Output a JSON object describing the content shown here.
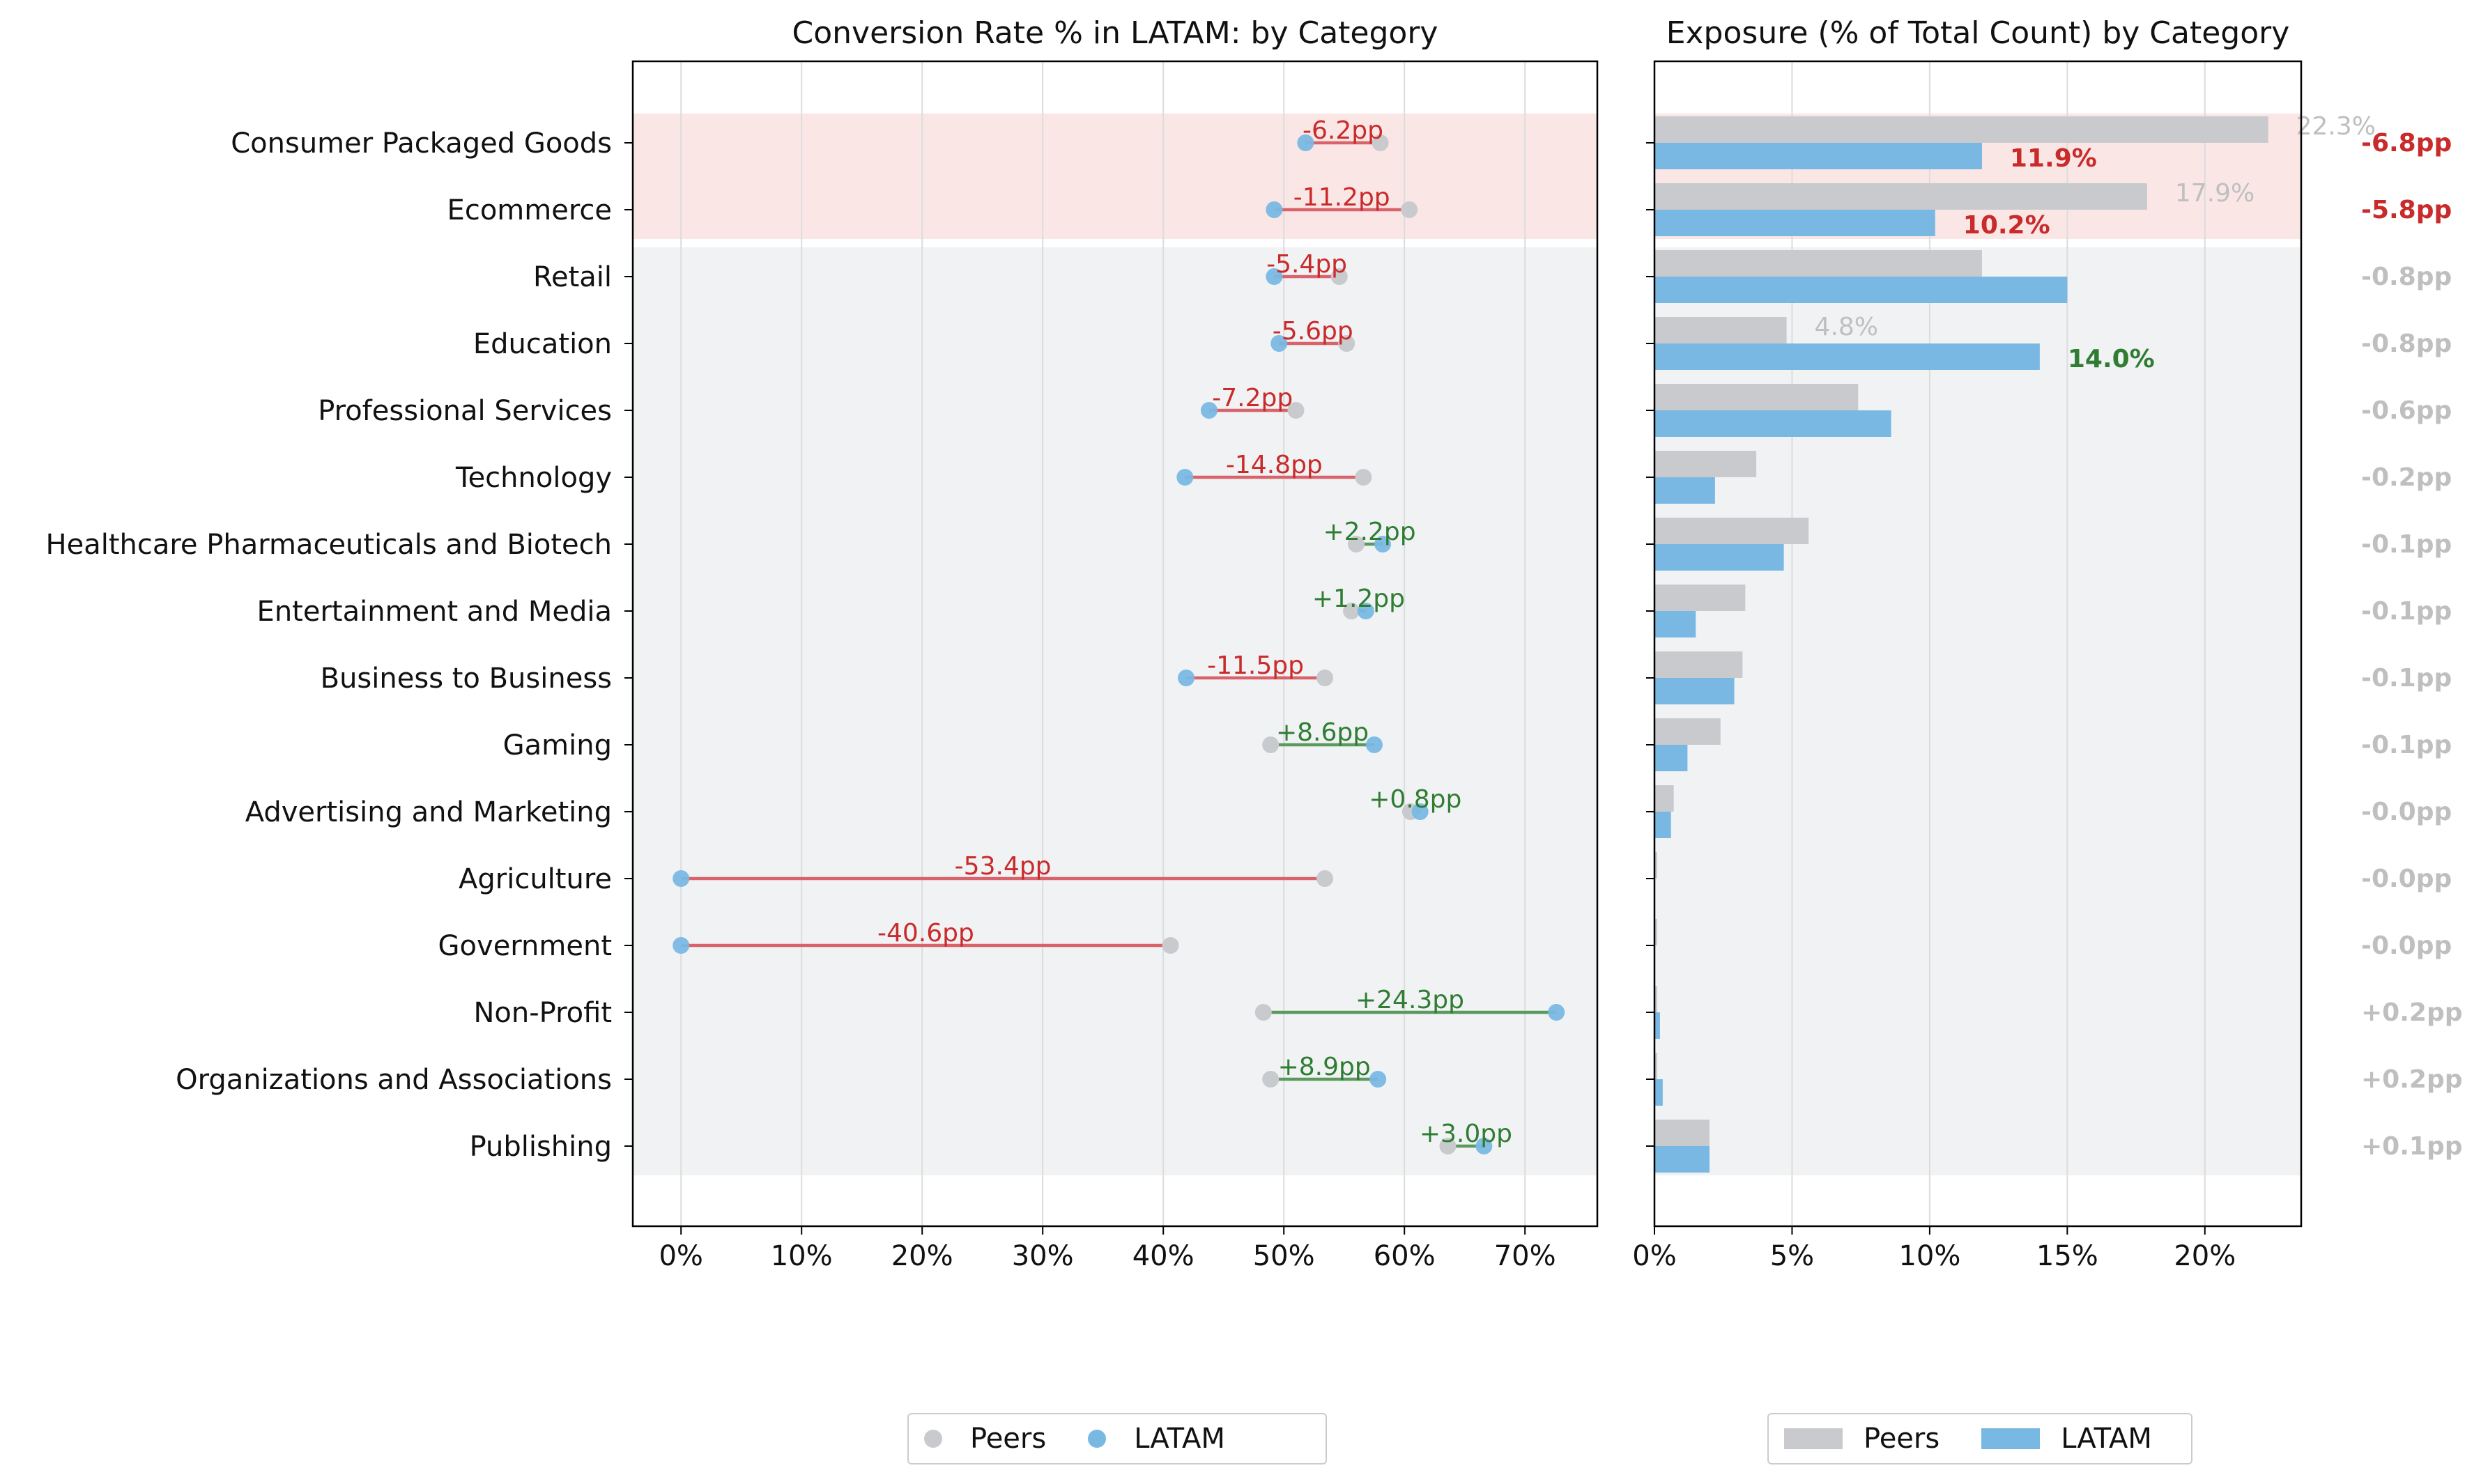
{
  "colors": {
    "peers": "#c8cacd",
    "region": "#79b8e3",
    "negative": "#c92a2a",
    "positive": "#2e7d32",
    "delta_muted": "#bfbfbf",
    "highlight_band": "#fbe6e6",
    "neutral_band": "#f1f2f4",
    "gap_line_negative": "#d9636a",
    "gap_line_positive": "#5a9a5e"
  },
  "chart_data": [
    {
      "type": "dumbbell",
      "title": "Conversion Rate % in LATAM: by Category",
      "xlabel": "",
      "ylabel": "",
      "xlim": [
        -4,
        76
      ],
      "xticks": [
        0,
        10,
        20,
        30,
        40,
        50,
        60,
        70
      ],
      "xtick_labels": [
        "0%",
        "10%",
        "20%",
        "30%",
        "40%",
        "50%",
        "60%",
        "70%"
      ],
      "grid": "vertical",
      "legend_position": "bottom",
      "categories": [
        "Consumer Packaged Goods",
        "Ecommerce",
        "Retail",
        "Education",
        "Professional Services",
        "Technology",
        "Healthcare Pharmaceuticals and Biotech",
        "Entertainment and Media",
        "Business to Business",
        "Gaming",
        "Advertising and Marketing",
        "Agriculture",
        "Government",
        "Non-Profit",
        "Organizations and Associations",
        "Publishing"
      ],
      "highlighted_categories": [
        "Consumer Packaged Goods",
        "Ecommerce"
      ],
      "series": [
        {
          "name": "Peers",
          "values": [
            58.0,
            60.4,
            54.6,
            55.2,
            51.0,
            56.6,
            56.0,
            55.6,
            53.4,
            48.9,
            60.5,
            53.4,
            40.6,
            48.3,
            48.9,
            63.6
          ]
        },
        {
          "name": "LATAM",
          "values": [
            51.8,
            49.2,
            49.2,
            49.6,
            43.8,
            41.8,
            58.2,
            56.8,
            41.9,
            57.5,
            61.3,
            0.0,
            0.0,
            72.6,
            57.8,
            66.6
          ]
        }
      ],
      "annotations": [
        "-6.2pp",
        "-11.2pp",
        "-5.4pp",
        "-5.6pp",
        "-7.2pp",
        "-14.8pp",
        "+2.2pp",
        "+1.2pp",
        "-11.5pp",
        "+8.6pp",
        "+0.8pp",
        "-53.4pp",
        "-40.6pp",
        "+24.3pp",
        "+8.9pp",
        "+3.0pp"
      ]
    },
    {
      "type": "bar",
      "orientation": "horizontal",
      "title": "Exposure (% of Total Count) by Category",
      "xlabel": "",
      "ylabel": "",
      "xlim": [
        0,
        23.5
      ],
      "xticks": [
        0,
        5,
        10,
        15,
        20
      ],
      "xtick_labels": [
        "0%",
        "5%",
        "10%",
        "15%",
        "20%"
      ],
      "grid": "vertical",
      "legend_position": "bottom",
      "categories": [
        "Consumer Packaged Goods",
        "Ecommerce",
        "Retail",
        "Education",
        "Professional Services",
        "Technology",
        "Healthcare Pharmaceuticals and Biotech",
        "Entertainment and Media",
        "Business to Business",
        "Gaming",
        "Advertising and Marketing",
        "Agriculture",
        "Government",
        "Non-Profit",
        "Organizations and Associations",
        "Publishing"
      ],
      "highlighted_categories": [
        "Consumer Packaged Goods",
        "Ecommerce"
      ],
      "series": [
        {
          "name": "Peers",
          "values": [
            22.3,
            17.9,
            11.9,
            4.8,
            7.4,
            3.7,
            5.6,
            3.3,
            3.2,
            2.4,
            0.7,
            0.1,
            0.1,
            0.1,
            0.1,
            2.0
          ]
        },
        {
          "name": "LATAM",
          "values": [
            11.9,
            10.2,
            15.0,
            14.0,
            8.6,
            2.2,
            4.7,
            1.5,
            2.9,
            1.2,
            0.6,
            0.0,
            0.0,
            0.2,
            0.3,
            2.0
          ]
        }
      ],
      "value_labels": [
        {
          "category": "Consumer Packaged Goods",
          "peers": "22.3%",
          "latam": "11.9%",
          "latam_style": "negative"
        },
        {
          "category": "Ecommerce",
          "peers": "17.9%",
          "latam": "10.2%",
          "latam_style": "negative"
        },
        {
          "category": "Education",
          "peers": "4.8%",
          "latam": "14.0%",
          "latam_style": "positive"
        }
      ],
      "delta_labels": [
        "-6.8pp",
        "-5.8pp",
        "-0.8pp",
        "-0.8pp",
        "-0.6pp",
        "-0.2pp",
        "-0.1pp",
        "-0.1pp",
        "-0.1pp",
        "-0.1pp",
        "-0.0pp",
        "-0.0pp",
        "-0.0pp",
        "+0.2pp",
        "+0.2pp",
        "+0.1pp"
      ],
      "delta_styles": [
        "negative",
        "negative",
        "muted",
        "muted",
        "muted",
        "muted",
        "muted",
        "muted",
        "muted",
        "muted",
        "muted",
        "muted",
        "muted",
        "muted",
        "muted",
        "muted"
      ]
    }
  ],
  "legends": {
    "left": {
      "peers_label": "Peers",
      "latam_label": "LATAM"
    },
    "right": {
      "peers_label": "Peers",
      "latam_label": "LATAM"
    }
  }
}
